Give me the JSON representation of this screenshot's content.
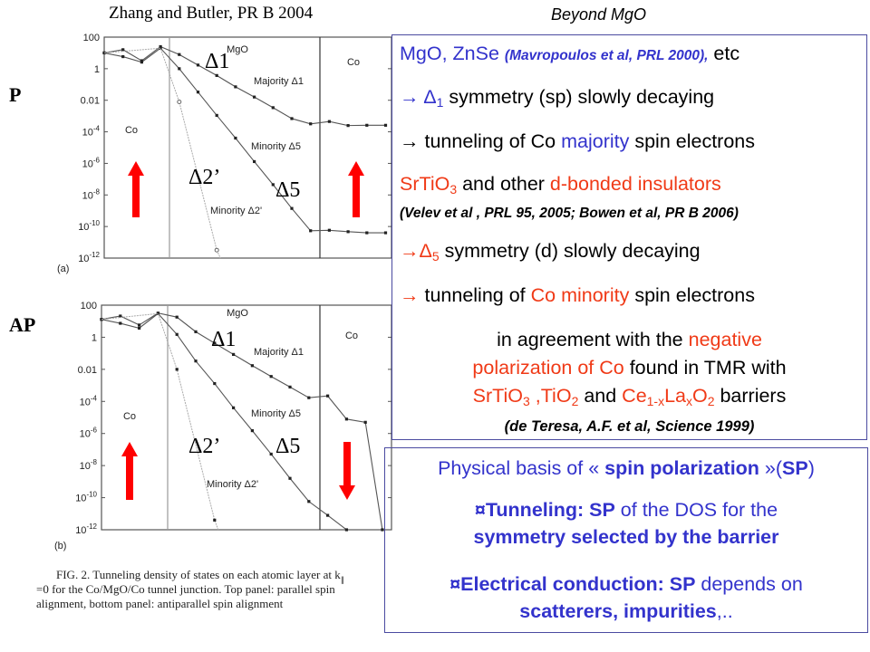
{
  "slide": {
    "title_left": "Zhang and Butler, PR B 2004",
    "title_right": "Beyond MgO",
    "label_p": "P",
    "label_ap": "AP"
  },
  "colors": {
    "blue": "#3333cc",
    "red": "#f03a17",
    "black": "#000000",
    "box_border": "#4a4aa0",
    "arrow": "#ff0000"
  },
  "box1": {
    "lines": [
      {
        "segments": [
          {
            "t": "MgO, ZnSe ",
            "c": "blue"
          },
          {
            "t": "(Mavropoulos et al, PRL 2000),",
            "c": "blue",
            "s": "cite"
          },
          {
            "t": " etc",
            "c": "black"
          }
        ]
      },
      {
        "segments": [
          {
            "t": "→ Δ",
            "c": "blue"
          },
          {
            "t": "1",
            "c": "blue",
            "sub": true
          },
          {
            "t": " symmetry (sp) slowly decaying",
            "c": "black"
          }
        ]
      },
      {
        "segments": [
          {
            "t": "→ tunneling of Co ",
            "c": "black"
          },
          {
            "t": "majority",
            "c": "blue"
          },
          {
            "t": " spin electrons",
            "c": "black"
          }
        ]
      },
      {
        "segments": [
          {
            "t": "SrTiO",
            "c": "red"
          },
          {
            "t": "3",
            "c": "red",
            "sub": true
          },
          {
            "t": " and other ",
            "c": "black"
          },
          {
            "t": "d-bonded insulators",
            "c": "red"
          }
        ]
      },
      {
        "segments": [
          {
            "t": "(Velev et al , PRL 95, 2005; Bowen et al, PR B 2006)",
            "c": "black",
            "s": "cite"
          }
        ]
      },
      {
        "segments": [
          {
            "t": "→Δ",
            "c": "red"
          },
          {
            "t": "5",
            "c": "red",
            "sub": true
          },
          {
            "t": " symmetry (d) slowly decaying",
            "c": "black"
          }
        ]
      },
      {
        "segments": [
          {
            "t": "→",
            "c": "red"
          },
          {
            "t": " tunneling of ",
            "c": "black"
          },
          {
            "t": "Co minority",
            "c": "red"
          },
          {
            "t": " spin electrons",
            "c": "black"
          }
        ]
      },
      {
        "segments": [
          {
            "t": "in agreement with the ",
            "c": "black"
          },
          {
            "t": "negative",
            "c": "red"
          }
        ],
        "center": true
      },
      {
        "segments": [
          {
            "t": "polarization of Co",
            "c": "red"
          },
          {
            "t": " found in TMR with",
            "c": "black"
          }
        ],
        "center": true
      },
      {
        "segments": [
          {
            "t": "SrTiO",
            "c": "red"
          },
          {
            "t": "3",
            "c": "red",
            "sub": true
          },
          {
            "t": " ,TiO",
            "c": "red"
          },
          {
            "t": "2",
            "c": "red",
            "sub": true
          },
          {
            "t": " and ",
            "c": "black"
          },
          {
            "t": "Ce",
            "c": "red"
          },
          {
            "t": "1-x",
            "c": "red",
            "sub": true
          },
          {
            "t": "La",
            "c": "red"
          },
          {
            "t": "x",
            "c": "red",
            "sub": true
          },
          {
            "t": "O",
            "c": "red"
          },
          {
            "t": "2",
            "c": "red",
            "sub": true
          },
          {
            "t": " barriers",
            "c": "black"
          }
        ],
        "center": true
      },
      {
        "segments": [
          {
            "t": "(de Teresa, A.F. et al, Science 1999)",
            "c": "black",
            "s": "cite-lg"
          }
        ],
        "center": true
      }
    ]
  },
  "box2": {
    "lines": [
      {
        "segments": [
          {
            "t": "Physical basis of « ",
            "c": "blue"
          },
          {
            "t": "spin polarization",
            "c": "blue",
            "s": "bold"
          },
          {
            "t": " »(",
            "c": "blue"
          },
          {
            "t": "SP",
            "c": "blue",
            "s": "bold"
          },
          {
            "t": ")",
            "c": "blue"
          }
        ]
      },
      {
        "segments": [
          {
            "t": "¤Tunneling: SP",
            "c": "blue",
            "s": "bold"
          },
          {
            "t": " of the DOS for the",
            "c": "blue"
          }
        ]
      },
      {
        "segments": [
          {
            "t": "symmetry selected by the barrier",
            "c": "blue",
            "s": "bold"
          }
        ]
      },
      {
        "segments": [
          {
            "t": "¤Electrical conduction: SP",
            "c": "blue",
            "s": "bold"
          },
          {
            "t": " depends on",
            "c": "blue"
          }
        ]
      },
      {
        "segments": [
          {
            "t": "scatterers, impurities",
            "c": "blue",
            "s": "bold"
          },
          {
            "t": ",..",
            "c": "blue"
          }
        ]
      }
    ]
  },
  "caption": {
    "line1": "FIG. 2. Tunneling density of states on each atomic layer at k",
    "line1_sub": "∥",
    "line2": "=0 for the Co/MgO/Co tunnel junction. Top panel: parallel spin",
    "line3": "alignment, bottom panel: antiparallel spin alignment"
  },
  "chart_data": [
    {
      "type": "line",
      "panel_label": "(a)",
      "y_scale": "log",
      "ylim": [
        1e-12,
        100
      ],
      "y_ticks": [
        "100",
        "1",
        "0.01",
        "10-4",
        "10-6",
        "10-8",
        "10-10",
        "10-12"
      ],
      "grid": false,
      "regions": [
        "Co",
        "MgO",
        "Co"
      ],
      "spin_arrows": [
        "up",
        "up"
      ],
      "series": [
        {
          "name": "Majority Δ1",
          "annotation": "Δ1",
          "x": [
            0,
            1,
            2,
            3,
            4,
            5,
            6,
            7,
            8,
            9,
            10,
            11,
            12,
            13,
            14,
            15
          ],
          "y": [
            10,
            16,
            3.2,
            25,
            7.9,
            1.7,
            0.37,
            0.071,
            0.016,
            0.0034,
            0.00069,
            0.00032,
            0.00045,
            0.00025,
            0.00026,
            0.00026
          ]
        },
        {
          "name": "Minority Δ5",
          "annotation": "Δ5",
          "x": [
            0,
            1,
            2,
            3,
            4,
            5,
            6,
            7,
            8,
            9,
            10,
            11,
            12,
            13,
            14,
            15
          ],
          "y": [
            10,
            5.8,
            2.6,
            20,
            1.0,
            0.033,
            0.0011,
            4e-05,
            1.3e-06,
            4.5e-08,
            1.4e-09,
            5.4e-11,
            5.8e-11,
            4.7e-11,
            4e-11,
            4e-11
          ]
        },
        {
          "name": "Minority Δ2'",
          "annotation": "Δ2’",
          "x": [
            3,
            4,
            6
          ],
          "y": [
            20,
            0.0079,
            3.2e-12
          ]
        }
      ]
    },
    {
      "type": "line",
      "panel_label": "(b)",
      "y_scale": "log",
      "ylim": [
        1e-12,
        100
      ],
      "y_ticks": [
        "100",
        "1",
        "0.01",
        "10-4",
        "10-6",
        "10-8",
        "10-10",
        "10-12"
      ],
      "grid": false,
      "regions": [
        "Co",
        "MgO",
        "Co"
      ],
      "spin_arrows": [
        "up",
        "down"
      ],
      "series": [
        {
          "name": "Majority Δ1",
          "annotation": "Δ1",
          "x": [
            0,
            1,
            2,
            3,
            4,
            5,
            6,
            7,
            8,
            9,
            10,
            11,
            12,
            13,
            14,
            14.9
          ],
          "y": [
            13,
            21,
            5.8,
            32,
            18,
            2.2,
            0.43,
            0.085,
            0.017,
            0.0036,
            0.00079,
            0.00017,
            0.00022,
            7.9e-06,
            5e-06,
            1e-12
          ]
        },
        {
          "name": "Minority Δ5",
          "annotation": "Δ5",
          "x": [
            0,
            1,
            2,
            3,
            4,
            5,
            6,
            7,
            8,
            9,
            10,
            11,
            12,
            13
          ],
          "y": [
            13,
            7.4,
            3.7,
            30,
            1.5,
            0.033,
            0.0013,
            4e-05,
            1.5e-06,
            5.2e-08,
            1.6e-09,
            5.8e-11,
            7.9e-12,
            1e-12
          ]
        },
        {
          "name": "Minority Δ2'",
          "annotation": "Δ2’",
          "x": [
            3,
            4,
            6
          ],
          "y": [
            30,
            0.01,
            4e-12
          ]
        }
      ]
    }
  ]
}
